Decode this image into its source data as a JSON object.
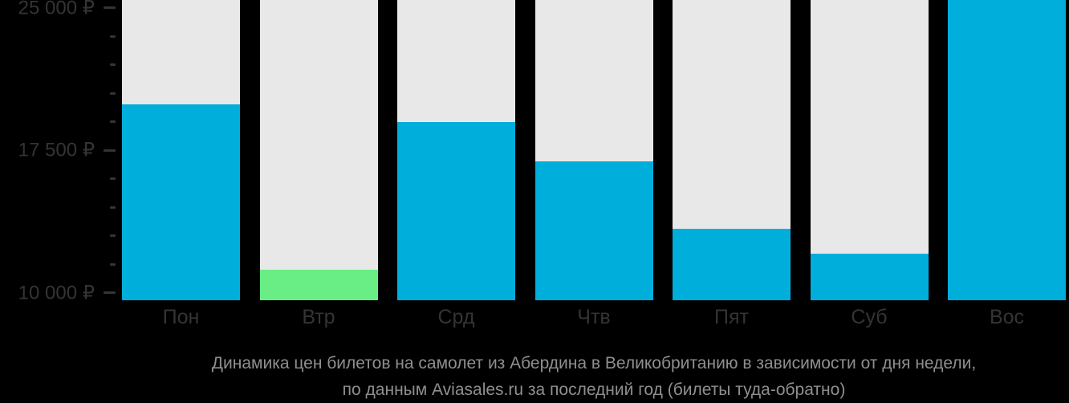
{
  "chart_data": {
    "type": "bar",
    "title": "Динамика цен билетов на самолет из Абердина в Великобританию в зависимости от дня недели,",
    "subtitle": "по данным Aviasales.ru за последний год (билеты туда-обратно)",
    "categories": [
      "Пон",
      "Втр",
      "Срд",
      "Чтв",
      "Пят",
      "Суб",
      "Вос"
    ],
    "values": [
      19900,
      11200,
      19000,
      16900,
      13350,
      12050,
      25450
    ],
    "unit": "₽",
    "xlabel": "",
    "ylabel": "",
    "ylim": [
      9600,
      25400
    ],
    "yticks_major": [
      {
        "value": 25000,
        "label": "25 000 ₽"
      },
      {
        "value": 17500,
        "label": "17 500 ₽"
      },
      {
        "value": 10000,
        "label": "10 000 ₽"
      }
    ],
    "yticks_minor": [
      23500,
      22000,
      20500,
      19000,
      16000,
      14500,
      13000,
      11500
    ],
    "highlight_index": 1,
    "highlight_meaning": "cheapest day",
    "note": "Вос bar is clipped at the top of the plot (value exceeds visible axis range)",
    "grid": false,
    "legend": false
  },
  "colors": {
    "background": "#000000",
    "column_bg": "#E8E8E8",
    "bar": "#00AEDC",
    "bar_highlight": "#69ED85",
    "axis_text": "#343434",
    "caption_text": "#8F8F8F"
  }
}
